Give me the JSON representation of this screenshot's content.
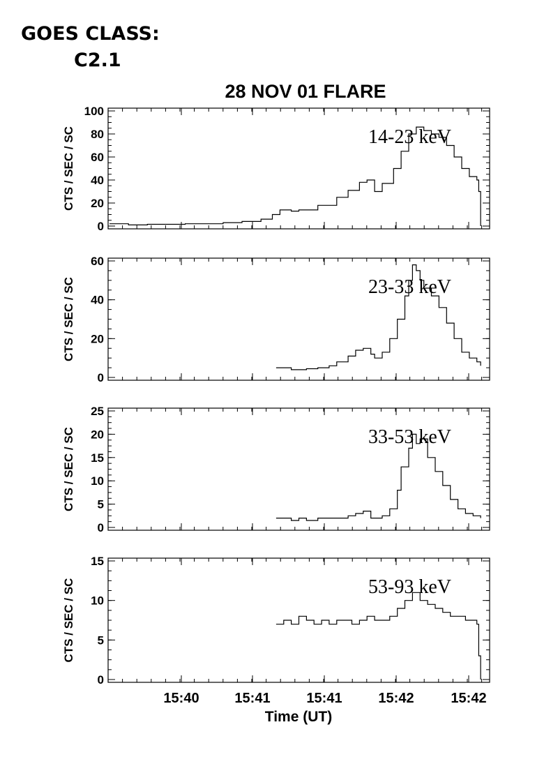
{
  "annotation": {
    "line1": "GOES CLASS:",
    "line2": "C2.1"
  },
  "chart_data": {
    "type": "line",
    "style": "step",
    "title": "28 NOV 01 FLARE",
    "xlabel": "Time (UT)",
    "x_tick_labels": [
      "15:40",
      "15:41",
      "15:41",
      "15:42",
      "15:42"
    ],
    "grid": false,
    "line_color": "#000000",
    "panels": [
      {
        "name": "14-23 keV",
        "ylabel": "CTS / SEC / SC",
        "ylim": [
          0,
          100
        ],
        "yticks": [
          0,
          20,
          40,
          60,
          80,
          100
        ],
        "x": [
          0,
          0.05,
          0.1,
          0.15,
          0.2,
          0.25,
          0.3,
          0.35,
          0.4,
          0.43,
          0.45,
          0.48,
          0.5,
          0.55,
          0.6,
          0.63,
          0.66,
          0.68,
          0.7,
          0.72,
          0.75,
          0.77,
          0.79,
          0.81,
          0.83,
          0.85,
          0.87,
          0.89,
          0.91,
          0.93,
          0.95,
          0.97,
          0.975,
          0.98
        ],
        "values": [
          2,
          1,
          1.5,
          1.5,
          2,
          2,
          3,
          4,
          6,
          10,
          14,
          13,
          14,
          18,
          25,
          31,
          38,
          40,
          30,
          37,
          50,
          65,
          80,
          86,
          83,
          80,
          77,
          70,
          60,
          50,
          43,
          40,
          30,
          0
        ]
      },
      {
        "name": "23-33 keV",
        "ylabel": "CTS / SEC / SC",
        "ylim": [
          0,
          60
        ],
        "yticks": [
          0,
          20,
          40,
          60
        ],
        "x": [
          0.44,
          0.48,
          0.5,
          0.52,
          0.55,
          0.58,
          0.6,
          0.63,
          0.65,
          0.67,
          0.69,
          0.7,
          0.72,
          0.74,
          0.76,
          0.78,
          0.79,
          0.8,
          0.81,
          0.82,
          0.83,
          0.85,
          0.87,
          0.89,
          0.91,
          0.93,
          0.95,
          0.97,
          0.98
        ],
        "values": [
          5,
          4,
          4,
          4.5,
          5,
          6,
          8,
          11,
          14,
          15,
          12,
          10,
          13,
          20,
          30,
          42,
          50,
          58,
          55,
          50,
          46,
          42,
          36,
          28,
          20,
          13,
          10,
          8,
          6
        ]
      },
      {
        "name": "33-53 keV",
        "ylabel": "CTS / SEC / SC",
        "ylim": [
          0,
          25
        ],
        "yticks": [
          0,
          5,
          10,
          15,
          20,
          25
        ],
        "x": [
          0.44,
          0.48,
          0.5,
          0.52,
          0.55,
          0.58,
          0.6,
          0.63,
          0.65,
          0.67,
          0.69,
          0.7,
          0.72,
          0.74,
          0.76,
          0.77,
          0.79,
          0.8,
          0.81,
          0.82,
          0.84,
          0.86,
          0.88,
          0.9,
          0.92,
          0.94,
          0.96,
          0.98
        ],
        "values": [
          2,
          1.5,
          2,
          1.5,
          2,
          2,
          2,
          2.5,
          3,
          3.5,
          2,
          2,
          2.5,
          4,
          8,
          13,
          17,
          20,
          18,
          19,
          15,
          12,
          9,
          6,
          4,
          3,
          2.5,
          2
        ]
      },
      {
        "name": "53-93 keV",
        "ylabel": "CTS / SEC / SC",
        "ylim": [
          0,
          15
        ],
        "yticks": [
          0,
          5,
          10,
          15
        ],
        "x": [
          0.44,
          0.46,
          0.48,
          0.5,
          0.52,
          0.54,
          0.56,
          0.58,
          0.6,
          0.62,
          0.64,
          0.66,
          0.68,
          0.7,
          0.72,
          0.74,
          0.76,
          0.78,
          0.8,
          0.82,
          0.84,
          0.86,
          0.88,
          0.9,
          0.92,
          0.94,
          0.96,
          0.97,
          0.975,
          0.98
        ],
        "values": [
          7,
          7.5,
          7,
          8,
          7.5,
          7,
          7.5,
          7,
          7.5,
          7.5,
          7,
          7.5,
          8,
          7.5,
          7.5,
          8,
          9,
          10,
          11,
          10,
          9.5,
          9,
          8.5,
          8,
          8,
          7.5,
          7.5,
          7,
          3,
          0
        ]
      }
    ]
  }
}
